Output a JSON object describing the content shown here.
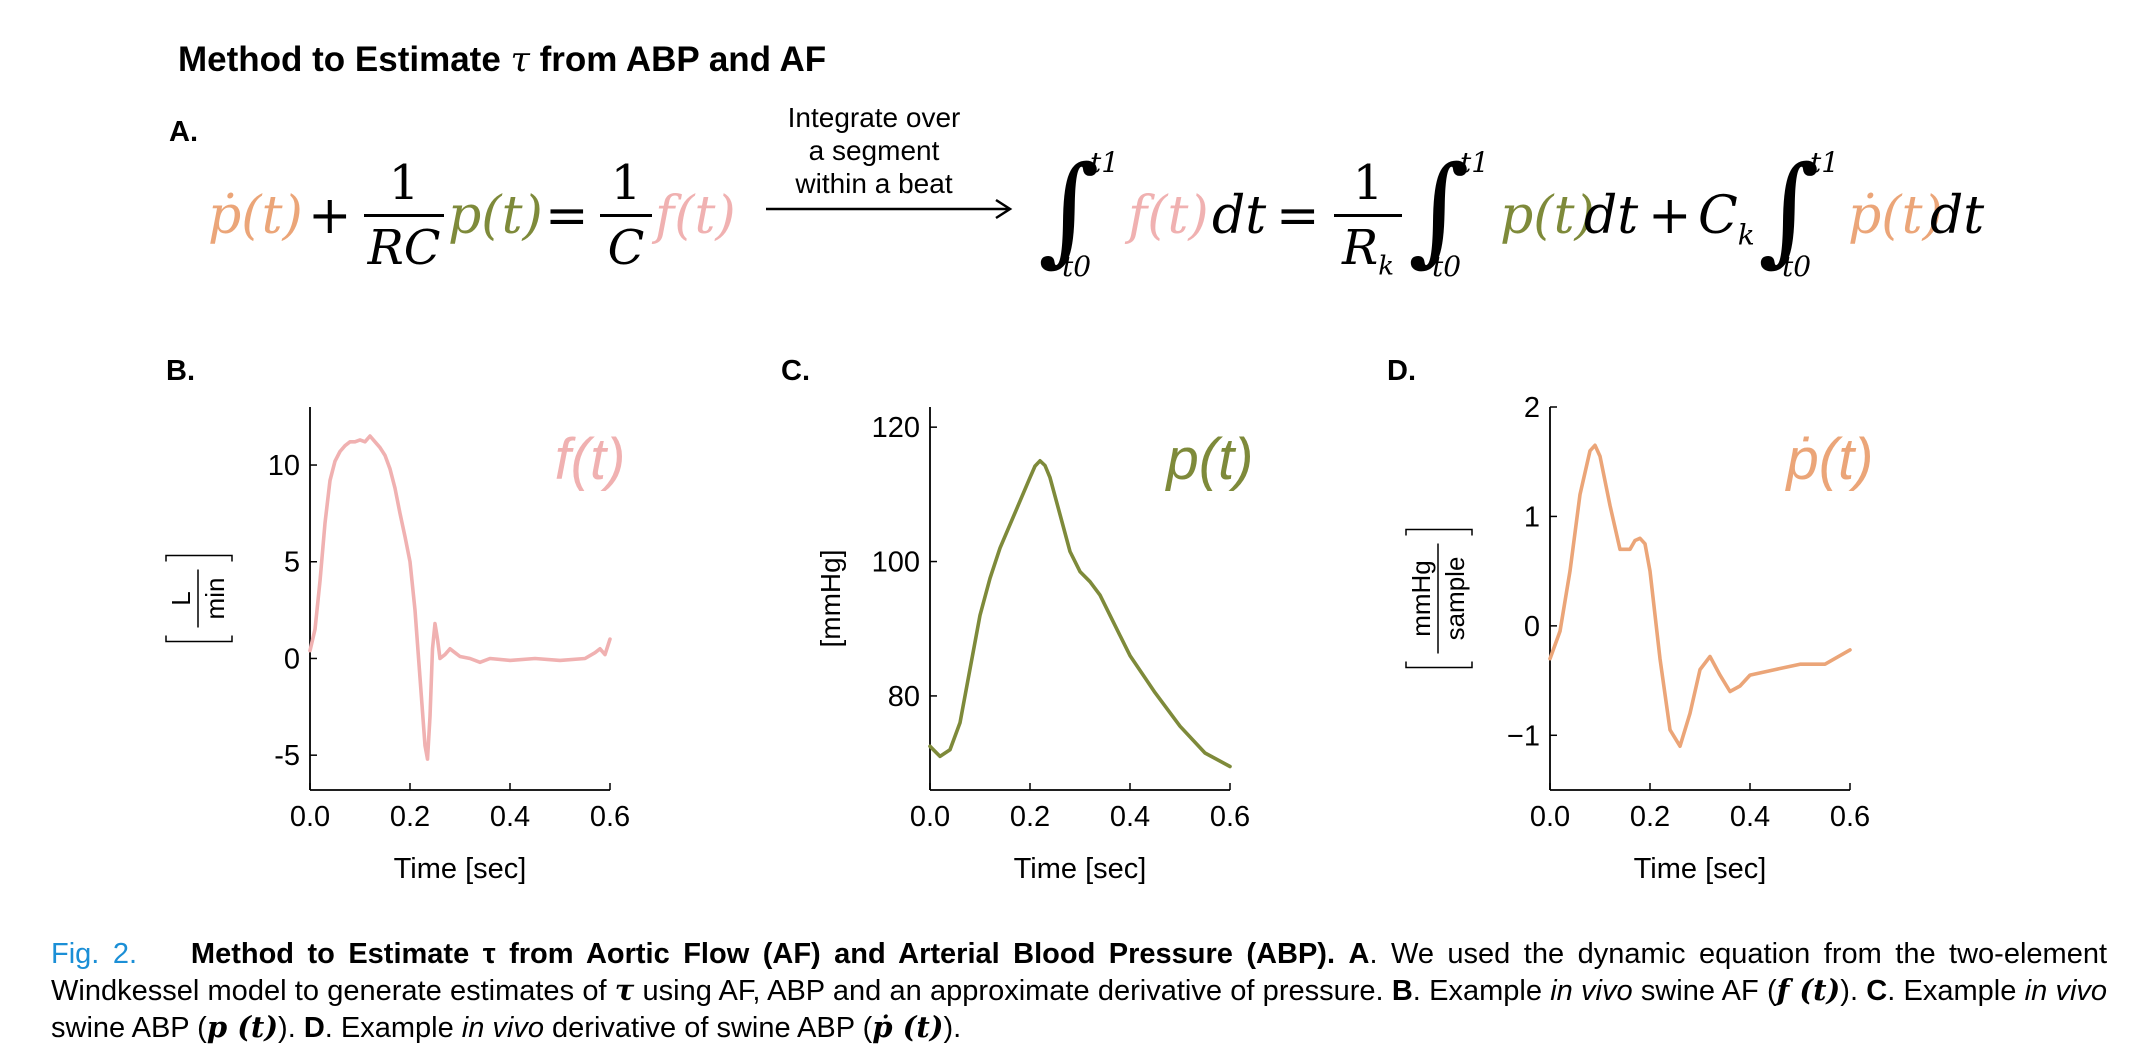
{
  "figure_title": {
    "prefix": "Method to Estimate ",
    "symbol": "τ",
    "suffix": " from ABP and AF"
  },
  "panel_labels": {
    "a": "A.",
    "b": "B.",
    "c": "C.",
    "d": "D."
  },
  "equation": {
    "arrow_label_lines": [
      "Integrate over",
      "a segment",
      "within a beat"
    ],
    "lhs_pdot": "ṗ(t)",
    "plus": "+",
    "frac1_num": "1",
    "frac1_den": "RC",
    "lhs_p": "p(t)",
    "equals": "=",
    "frac2_num": "1",
    "frac2_den": "C",
    "rhs_f": "f(t)",
    "int_lower": "t0",
    "int_upper": "t1",
    "int_f": "f(t)",
    "dt": "dt",
    "equals2": "=",
    "frac3_num": "1",
    "frac3_den": "R",
    "frac3_den_sub": "k",
    "int_p": "p(t)",
    "plus2": "+",
    "ck": "C",
    "ck_sub": "k",
    "int_pdot": "ṗ(t)"
  },
  "colors": {
    "flow": "#f0b1b1",
    "pressure": "#7e8a3a",
    "derivative": "#eba578"
  },
  "chart_data": [
    {
      "type": "line",
      "panel": "B",
      "legend_text": "f(t)",
      "xlabel": "Time [sec]",
      "ylabel_num": "L",
      "ylabel_den": "min",
      "xlim": [
        0.0,
        0.6
      ],
      "ylim": [
        -6.8,
        13
      ],
      "xticks": [
        0.0,
        0.2,
        0.4,
        0.6
      ],
      "xtick_labels": [
        "0.0",
        "0.2",
        "0.4",
        "0.6"
      ],
      "yticks": [
        -5,
        0,
        5,
        10
      ],
      "ytick_labels": [
        "-5",
        "0",
        "5",
        "10"
      ],
      "x": [
        0.0,
        0.01,
        0.02,
        0.03,
        0.04,
        0.05,
        0.06,
        0.07,
        0.08,
        0.09,
        0.1,
        0.11,
        0.12,
        0.13,
        0.14,
        0.15,
        0.16,
        0.17,
        0.18,
        0.19,
        0.2,
        0.21,
        0.22,
        0.23,
        0.235,
        0.24,
        0.245,
        0.25,
        0.255,
        0.26,
        0.27,
        0.28,
        0.29,
        0.3,
        0.32,
        0.34,
        0.36,
        0.4,
        0.45,
        0.5,
        0.55,
        0.57,
        0.58,
        0.59,
        0.6
      ],
      "y": [
        0.4,
        1.5,
        4.0,
        7.0,
        9.2,
        10.2,
        10.7,
        11.0,
        11.2,
        11.2,
        11.3,
        11.2,
        11.5,
        11.2,
        10.9,
        10.5,
        9.8,
        8.8,
        7.5,
        6.3,
        5.0,
        2.5,
        -1.0,
        -4.5,
        -5.2,
        -3.0,
        0.5,
        1.8,
        1.0,
        0.0,
        0.2,
        0.5,
        0.3,
        0.1,
        0.0,
        -0.2,
        0.0,
        -0.1,
        0.0,
        -0.1,
        0.0,
        0.3,
        0.5,
        0.2,
        1.0
      ]
    },
    {
      "type": "line",
      "panel": "C",
      "legend_text": "p(t)",
      "xlabel": "Time [sec]",
      "ylabel": "[mmHg]",
      "xlim": [
        0.0,
        0.6
      ],
      "ylim": [
        66,
        123
      ],
      "xticks": [
        0.0,
        0.2,
        0.4,
        0.6
      ],
      "xtick_labels": [
        "0.0",
        "0.2",
        "0.4",
        "0.6"
      ],
      "yticks": [
        80,
        100,
        120
      ],
      "ytick_labels": [
        "80",
        "100",
        "120"
      ],
      "x": [
        0.0,
        0.02,
        0.04,
        0.06,
        0.08,
        0.1,
        0.12,
        0.14,
        0.16,
        0.18,
        0.2,
        0.21,
        0.22,
        0.23,
        0.24,
        0.26,
        0.28,
        0.3,
        0.32,
        0.34,
        0.36,
        0.38,
        0.4,
        0.45,
        0.5,
        0.55,
        0.6
      ],
      "y": [
        72.5,
        71.0,
        72.0,
        76.0,
        84.0,
        92.0,
        97.5,
        102.0,
        105.5,
        109.0,
        112.5,
        114.2,
        115.0,
        114.3,
        112.5,
        107.0,
        101.5,
        98.5,
        97.0,
        95.0,
        92.0,
        89.0,
        86.0,
        80.5,
        75.5,
        71.5,
        69.5
      ]
    },
    {
      "type": "line",
      "panel": "D",
      "legend_text": "ṗ(t)",
      "xlabel": "Time [sec]",
      "ylabel_num": "mmHg",
      "ylabel_den": "sample",
      "xlim": [
        0.0,
        0.6
      ],
      "ylim": [
        -1.5,
        2.0
      ],
      "xticks": [
        0.0,
        0.2,
        0.4,
        0.6
      ],
      "xtick_labels": [
        "0.0",
        "0.2",
        "0.4",
        "0.6"
      ],
      "yticks": [
        -1,
        0,
        1,
        2
      ],
      "ytick_labels": [
        "−1",
        "0",
        "1",
        "2"
      ],
      "x": [
        0.0,
        0.02,
        0.04,
        0.06,
        0.08,
        0.09,
        0.1,
        0.12,
        0.14,
        0.16,
        0.17,
        0.18,
        0.19,
        0.2,
        0.22,
        0.24,
        0.26,
        0.28,
        0.3,
        0.32,
        0.34,
        0.36,
        0.38,
        0.4,
        0.45,
        0.5,
        0.55,
        0.6
      ],
      "y": [
        -0.3,
        -0.05,
        0.5,
        1.2,
        1.6,
        1.65,
        1.55,
        1.1,
        0.7,
        0.7,
        0.78,
        0.8,
        0.75,
        0.5,
        -0.3,
        -0.95,
        -1.1,
        -0.8,
        -0.4,
        -0.28,
        -0.45,
        -0.6,
        -0.55,
        -0.45,
        -0.4,
        -0.35,
        -0.35,
        -0.22
      ]
    }
  ],
  "caption": {
    "fig_label": "Fig. 2.",
    "bold_title": "Method to Estimate τ from Aortic Flow (AF) and Arterial Blood Pressure (ABP).",
    "seg_a_label": "A",
    "seg_a_text": ". We used the dynamic equation from the two-element Windkessel model to generate estimates of ",
    "tau": "τ",
    "seg_a_text2": " using AF, ABP and an approximate derivative of pressure. ",
    "seg_b_label": "B",
    "seg_b_text": ". Example ",
    "in_vivo": "in vivo",
    "seg_b_text2": " swine AF (",
    "f_sym": "f (t)",
    "seg_b_text3": "). ",
    "seg_c_label": "C",
    "seg_c_text": ". Example ",
    "seg_c_text2": " swine ABP (",
    "p_sym": "p (t)",
    "seg_c_text3": "). ",
    "seg_d_label": "D",
    "seg_d_text": ". Example ",
    "seg_d_text2": " derivative of swine ABP (",
    "pdot_sym": "ṗ (t)",
    "seg_d_text3": ")."
  }
}
